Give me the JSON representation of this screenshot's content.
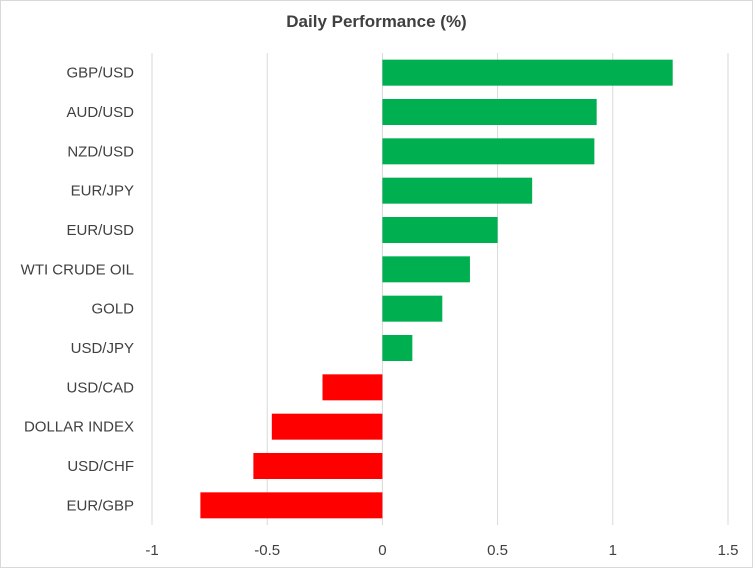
{
  "chart_data": {
    "type": "bar",
    "orientation": "horizontal",
    "title": "Daily Performance (%)",
    "xlabel": "",
    "ylabel": "",
    "categories": [
      "GBP/USD",
      "AUD/USD",
      "NZD/USD",
      "EUR/JPY",
      "EUR/USD",
      "WTI CRUDE OIL",
      "GOLD",
      "USD/JPY",
      "USD/CAD",
      "DOLLAR INDEX",
      "USD/CHF",
      "EUR/GBP"
    ],
    "values": [
      1.26,
      0.93,
      0.92,
      0.65,
      0.5,
      0.38,
      0.26,
      0.13,
      -0.26,
      -0.48,
      -0.56,
      -0.79
    ],
    "xlim": [
      -1,
      1.5
    ],
    "xticks": [
      -1,
      -0.5,
      0,
      0.5,
      1,
      1.5
    ],
    "xtick_labels": [
      "-1",
      "-0.5",
      "0",
      "0.5",
      "1",
      "1.5"
    ],
    "grid": "vertical",
    "legend": "none",
    "colors": {
      "positive": "#00b050",
      "negative": "#ff0000",
      "grid": "#d9d9d9",
      "text": "#404040"
    }
  }
}
